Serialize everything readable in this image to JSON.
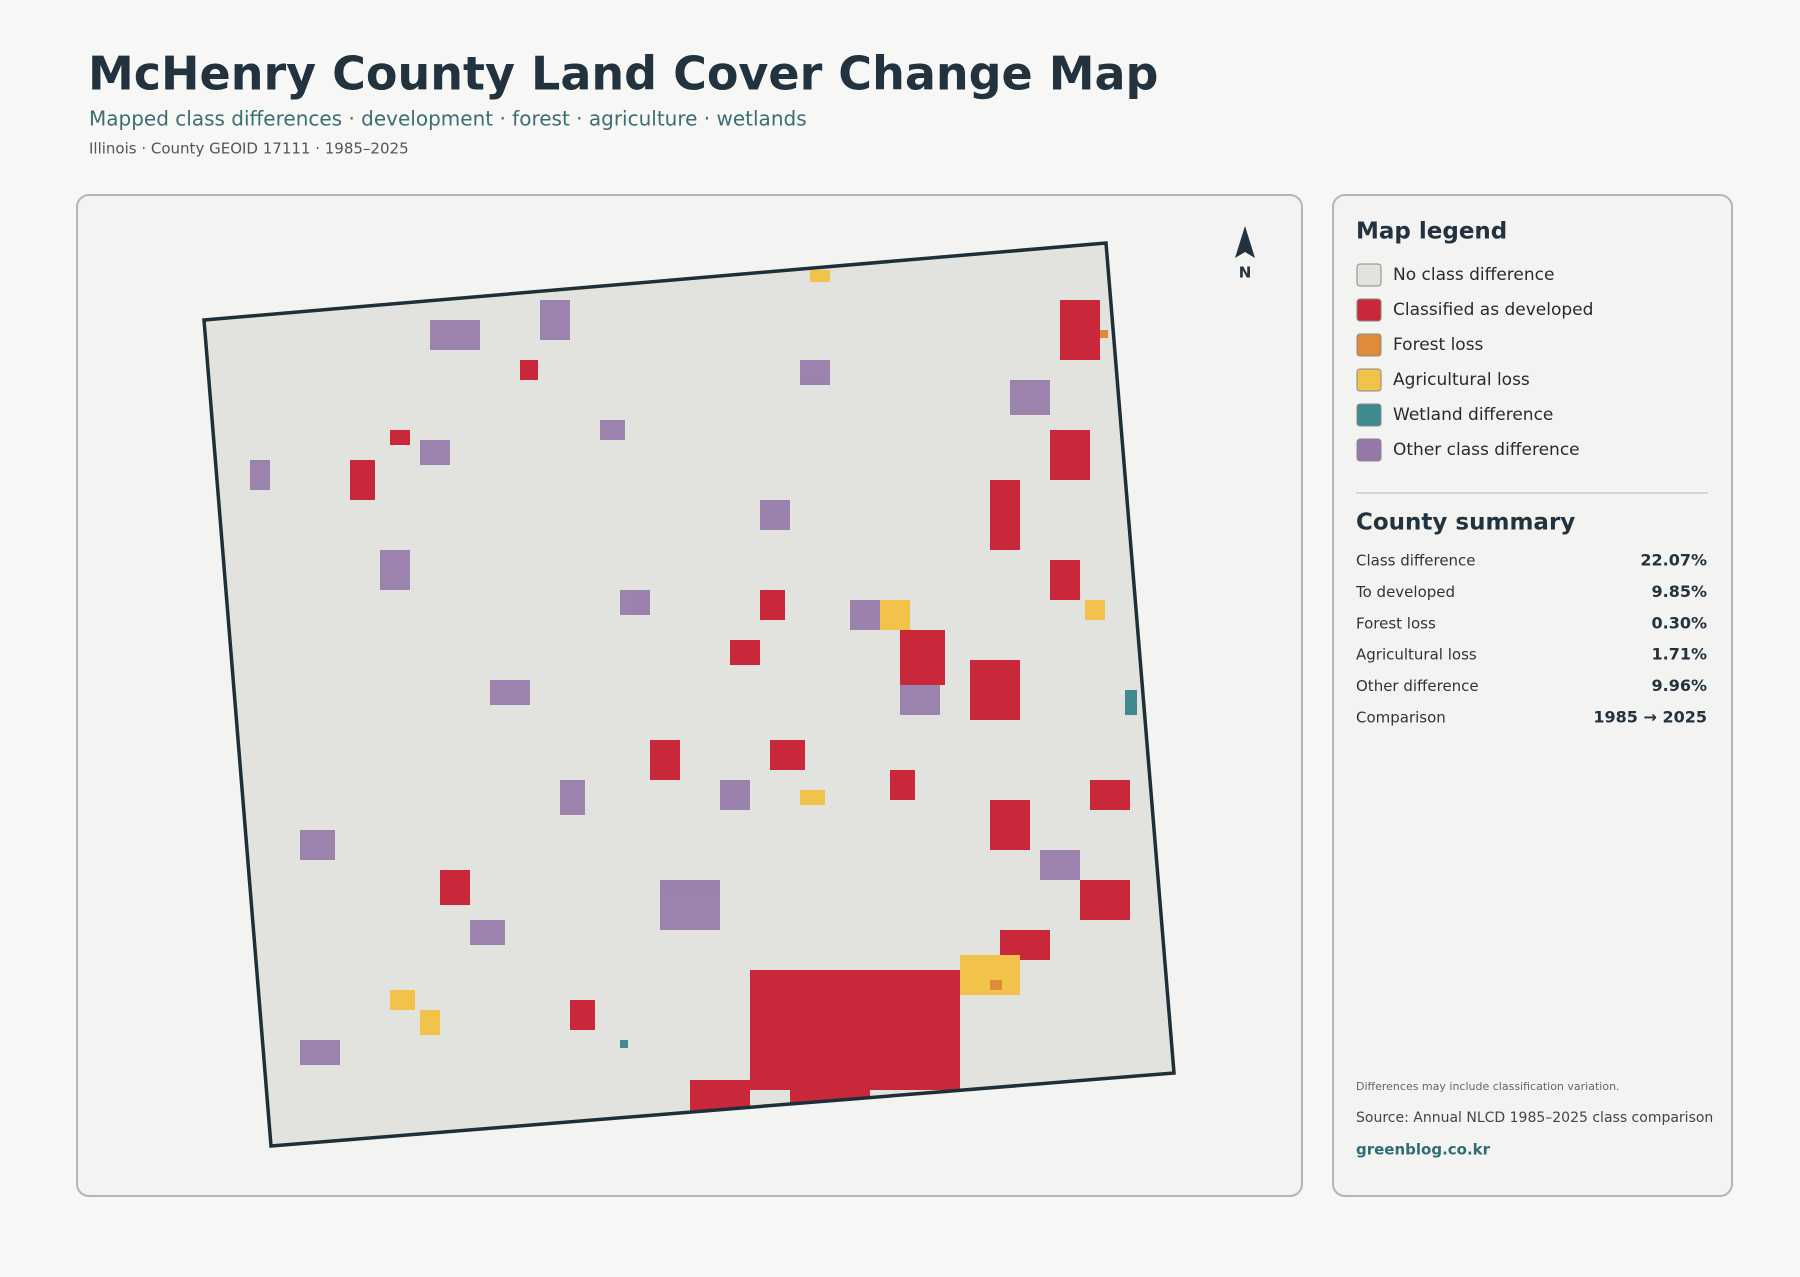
{
  "header": {
    "title": "McHenry County Land Cover Change Map",
    "subtitle": "Mapped class differences · development · forest · agriculture · wetlands",
    "meta": "Illinois · County GEOID 17111 · 1985–2025"
  },
  "map": {
    "north_label": "N"
  },
  "legend": {
    "title": "Map legend",
    "items": [
      {
        "label": "No class difference",
        "color": "#e2e3df"
      },
      {
        "label": "Classified as developed",
        "color": "#c8283a"
      },
      {
        "label": "Forest loss",
        "color": "#e08b3a"
      },
      {
        "label": "Agricultural loss",
        "color": "#f2c34a"
      },
      {
        "label": "Wetland difference",
        "color": "#3e8a8e"
      },
      {
        "label": "Other class difference",
        "color": "#9478a8"
      }
    ]
  },
  "summary": {
    "title": "County summary",
    "rows": [
      [
        "Class difference",
        "22.07%"
      ],
      [
        "To developed",
        "9.85%"
      ],
      [
        "Forest loss",
        "0.30%"
      ],
      [
        "Agricultural loss",
        "1.71%"
      ],
      [
        "Other difference",
        "9.96%"
      ],
      [
        "Comparison",
        "1985 → 2025"
      ]
    ]
  },
  "footer": {
    "note": "Differences may include classification variation.",
    "source": "Source: Annual NLCD 1985–2025 class comparison",
    "link": "greenblog.co.kr"
  }
}
